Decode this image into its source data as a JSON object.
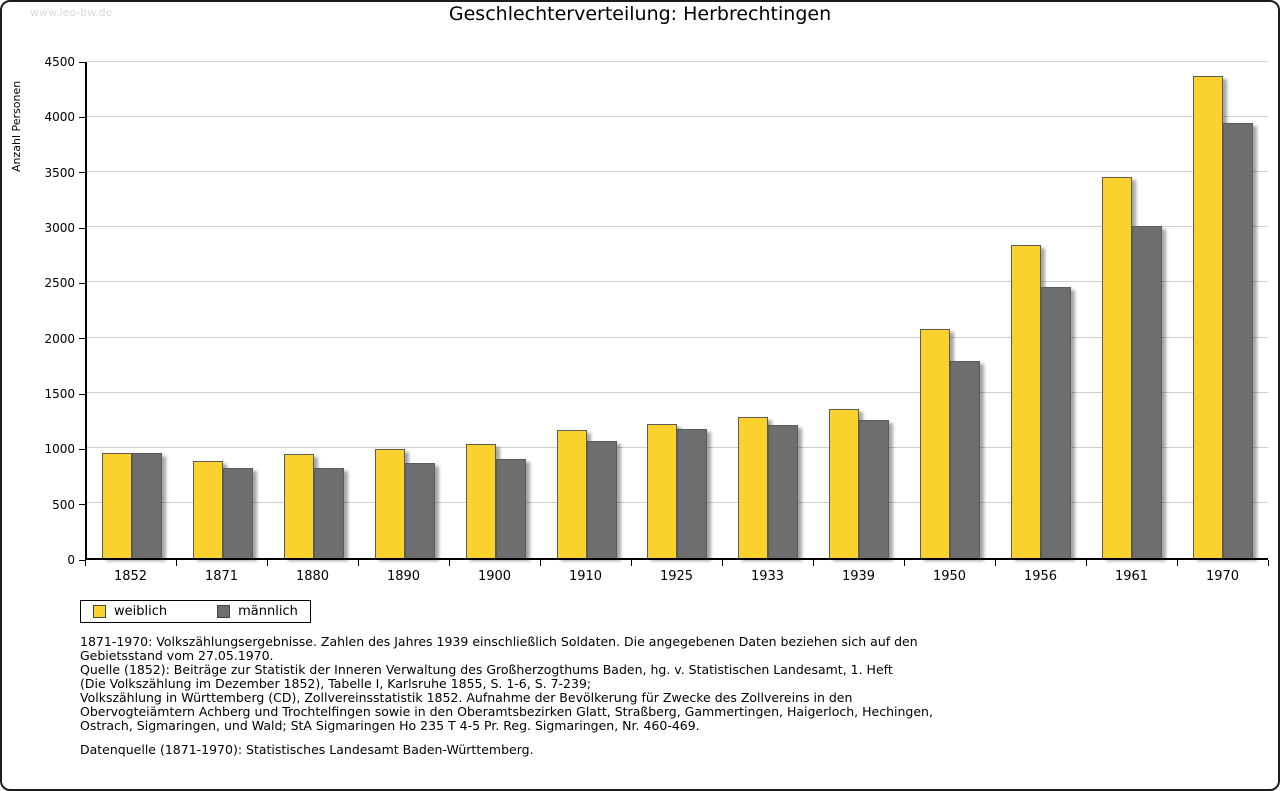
{
  "watermark": "www.leo-bw.de",
  "title": "Geschlechterverteilung: Herbrechtingen",
  "chart_data": {
    "type": "bar",
    "title": "Geschlechterverteilung: Herbrechtingen",
    "xlabel": "",
    "ylabel": "Anzahl Personen",
    "ylim": [
      0,
      4500
    ],
    "ytick_step": 500,
    "grid": true,
    "legend_position": "bottom-left",
    "categories": [
      "1852",
      "1871",
      "1880",
      "1890",
      "1900",
      "1910",
      "1925",
      "1933",
      "1939",
      "1950",
      "1956",
      "1961",
      "1970"
    ],
    "series": [
      {
        "name": "weiblich",
        "color": "#FBD22D",
        "values": [
          950,
          880,
          940,
          990,
          1030,
          1160,
          1220,
          1275,
          1355,
          2080,
          2840,
          3460,
          4370
        ]
      },
      {
        "name": "männlich",
        "color": "#6E6E6E",
        "values": [
          950,
          815,
          820,
          865,
          900,
          1065,
          1175,
          1210,
          1255,
          1790,
          2460,
          3010,
          3950
        ]
      }
    ]
  },
  "footnotes": [
    "1871-1970: Volkszählungsergebnisse. Zahlen des Jahres 1939 einschließlich Soldaten. Die angegebenen Daten beziehen sich auf den",
    "Gebietsstand vom 27.05.1970.",
    "Quelle (1852): Beiträge zur Statistik der Inneren Verwaltung des Großherzogthums Baden, hg. v. Statistischen Landesamt, 1. Heft",
    "(Die Volkszählung im Dezember 1852), Tabelle I, Karlsruhe 1855, S. 1-6, S. 7-239;",
    "Volkszählung in Württemberg (CD), Zollvereinsstatistik 1852. Aufnahme der Bevölkerung für Zwecke des Zollvereins in den",
    "Obervogteiämtern Achberg und Trochtelfingen sowie in den Oberamtsbezirken Glatt, Straßberg, Gammertingen, Haigerloch, Hechingen,",
    "Ostrach, Sigmaringen, und Wald; StA Sigmaringen Ho 235 T 4-5 Pr. Reg. Sigmaringen, Nr. 460-469.",
    "",
    "Datenquelle (1871-1970): Statistisches Landesamt Baden-Württemberg."
  ]
}
